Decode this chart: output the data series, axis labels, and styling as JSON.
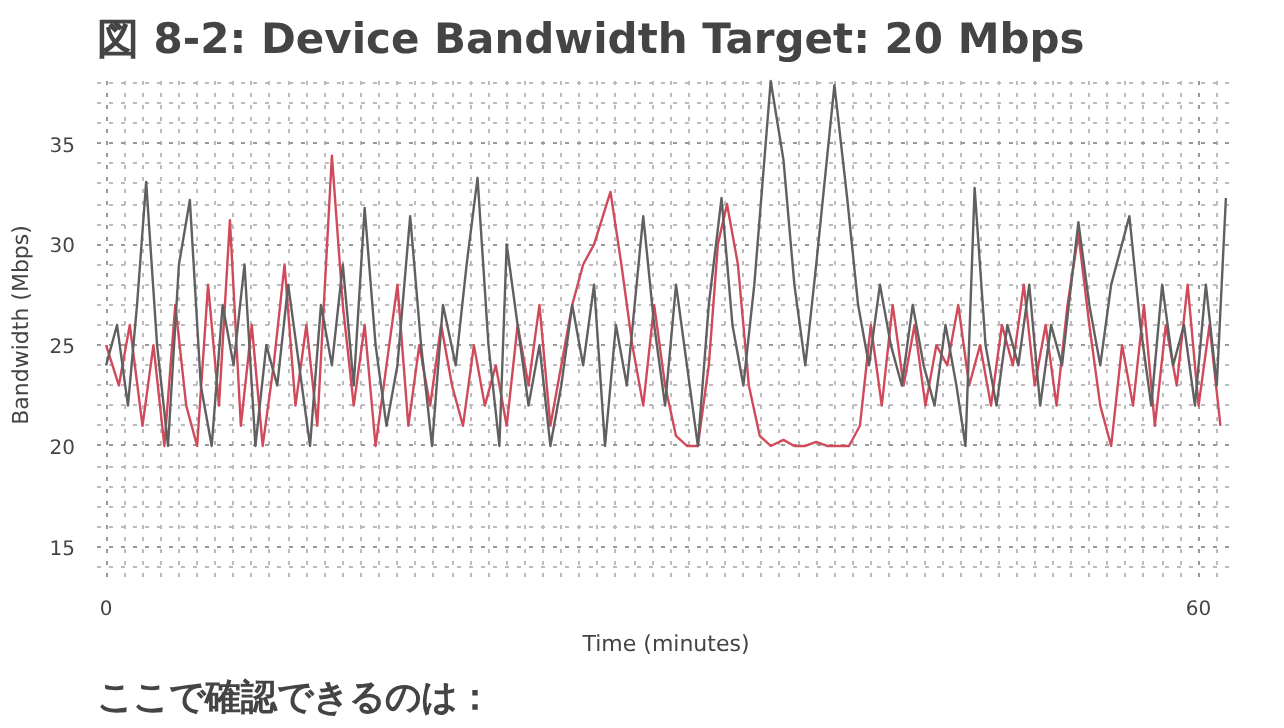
{
  "chart_data": {
    "type": "line",
    "title": "図 8-2: Device Bandwidth Target: 20 Mbps",
    "xlabel": "Time (minutes)",
    "ylabel": "Bandwidth (Mbps)",
    "xlim": [
      -0.5,
      62
    ],
    "ylim": [
      13.5,
      38.5
    ],
    "xticks": [
      0,
      60
    ],
    "yticks": [
      15,
      20,
      25,
      30,
      35
    ],
    "grid": true,
    "line_style": "solid",
    "series": [
      {
        "color": "#d04a5a",
        "x": [
          0,
          0.7,
          1.3,
          2,
          2.6,
          3.2,
          3.8,
          4.4,
          5,
          5.6,
          6.2,
          6.8,
          7.4,
          8,
          8.6,
          9.2,
          9.8,
          10.4,
          11,
          11.6,
          12.4,
          13,
          13.6,
          14.2,
          14.8,
          15.4,
          16,
          16.6,
          17.2,
          17.8,
          18.4,
          19,
          19.6,
          20.2,
          20.8,
          21.4,
          22,
          22.6,
          23.2,
          23.8,
          24.4,
          25,
          25.6,
          26.2,
          26.8,
          27.7,
          28.3,
          28.9,
          29.5,
          30.1,
          30.7,
          31.3,
          31.9,
          32.5,
          33.1,
          33.6,
          34.1,
          34.7,
          35.3,
          35.9,
          36.5,
          37.2,
          37.8,
          38.4,
          39,
          39.6,
          40.2,
          40.8,
          41.4,
          42,
          42.6,
          43.2,
          43.8,
          44.4,
          45,
          45.6,
          46.2,
          46.8,
          47.4,
          48,
          48.6,
          49.2,
          49.8,
          50.4,
          51,
          51.6,
          52.2,
          52.8,
          53.4,
          54,
          54.6,
          55.2,
          55.8,
          56.4,
          57,
          57.6,
          58.2,
          58.8,
          59.4,
          60,
          60.6,
          61.2
        ],
        "values": [
          25,
          23,
          26,
          21,
          25,
          20,
          27,
          22,
          20,
          28,
          22,
          31.2,
          21,
          26,
          20,
          24,
          29,
          22,
          26,
          21,
          34.4,
          27,
          22,
          26,
          20,
          24,
          28,
          21,
          25,
          22,
          26,
          23,
          21,
          25,
          22,
          24,
          21,
          26,
          23,
          27,
          21,
          24,
          27,
          29,
          30,
          32.6,
          29,
          25,
          22,
          27,
          23,
          20.5,
          20,
          20,
          24,
          30,
          32,
          29,
          23,
          20.5,
          20,
          20.3,
          20,
          20,
          20.2,
          20,
          20,
          20,
          21,
          26,
          22,
          27,
          23,
          26,
          22,
          25,
          24,
          27,
          23,
          25,
          22,
          26,
          24,
          28,
          23,
          26,
          22,
          27,
          30.5,
          26,
          22,
          20,
          25,
          22,
          27,
          21,
          26,
          23,
          28,
          22,
          26,
          21
        ]
      },
      {
        "color": "#606060",
        "x": [
          0,
          0.6,
          1.2,
          1.7,
          2.2,
          2.8,
          3.4,
          4,
          4.6,
          5.2,
          5.8,
          6.4,
          7,
          7.6,
          8.2,
          8.8,
          9.4,
          10,
          10.6,
          11.2,
          11.8,
          12.4,
          13,
          13.6,
          14.2,
          14.8,
          15.4,
          16,
          16.7,
          17.3,
          17.9,
          18.5,
          19.2,
          19.8,
          20.4,
          21,
          21.6,
          22,
          22.6,
          23.2,
          23.8,
          24.4,
          25,
          25.6,
          26.2,
          26.8,
          27.4,
          28,
          28.6,
          29.5,
          30.1,
          30.7,
          31.3,
          31.9,
          32.5,
          33.1,
          33.8,
          34.4,
          35,
          35.6,
          36.5,
          37.2,
          37.8,
          38.4,
          39,
          40,
          40.7,
          41.3,
          41.9,
          42.5,
          43.1,
          43.7,
          44.3,
          44.9,
          45.5,
          46.1,
          46.7,
          47.2,
          47.7,
          48.3,
          48.9,
          49.5,
          50.1,
          50.7,
          51.3,
          51.9,
          52.5,
          53,
          53.4,
          54,
          54.6,
          55.2,
          56.2,
          56.8,
          57.4,
          58,
          58.6,
          59.2,
          59.8,
          60.4,
          61,
          61.5
        ],
        "values": [
          24,
          26,
          22,
          27,
          33.1,
          25,
          20,
          29,
          32.2,
          23,
          20,
          27,
          24,
          29,
          20,
          25,
          23,
          28,
          24,
          20,
          27,
          24,
          29,
          23,
          31.8,
          25,
          21,
          24,
          31.4,
          25,
          20,
          27,
          24,
          29,
          33.3,
          25,
          20,
          30,
          26,
          22,
          25,
          20,
          23,
          27,
          24,
          28,
          20,
          26,
          23,
          31.4,
          26,
          22,
          28,
          24,
          20,
          27,
          32.3,
          26,
          23,
          28,
          38.1,
          34.2,
          28,
          24,
          29,
          37.9,
          32.3,
          27,
          24,
          28,
          25,
          23,
          27,
          24,
          22,
          26,
          23,
          20,
          32.8,
          25,
          22,
          26,
          24,
          28,
          22,
          26,
          24,
          28,
          31.1,
          27,
          24,
          28,
          31.4,
          26,
          22,
          28,
          24,
          26,
          22,
          28,
          23,
          32.3
        ]
      }
    ],
    "annotations": [
      "ここで確認できるのは："
    ]
  }
}
